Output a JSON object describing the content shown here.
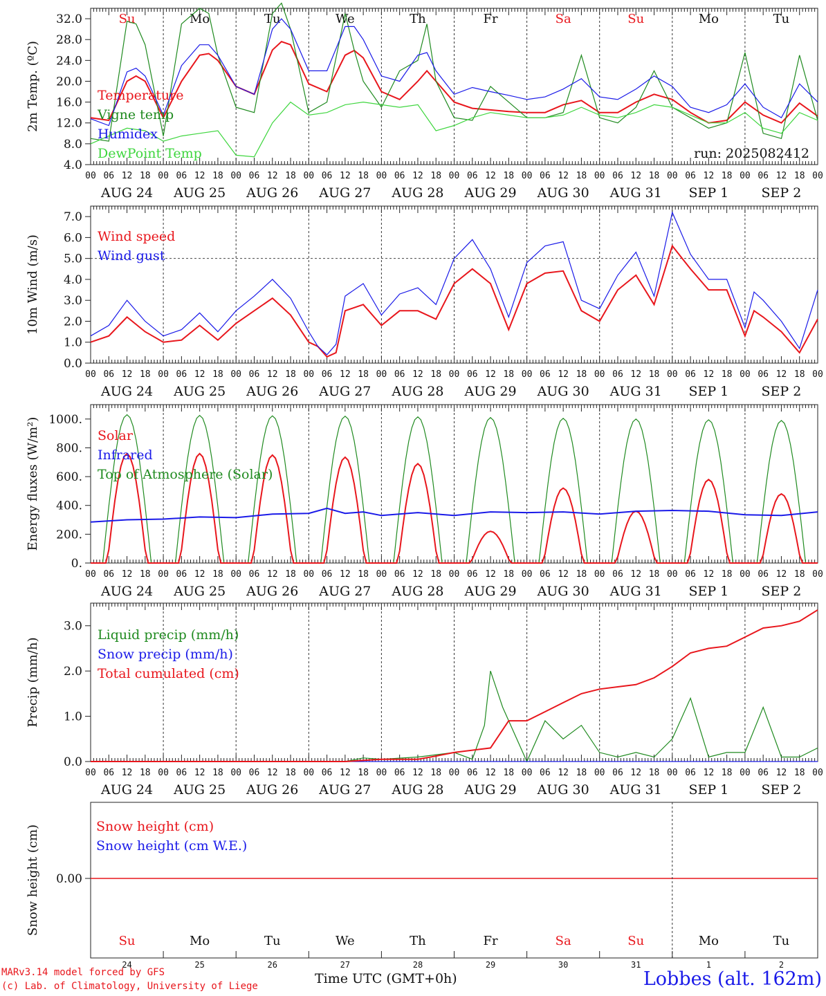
{
  "days": [
    "AUG 24",
    "AUG 25",
    "AUG 26",
    "AUG 27",
    "AUG 28",
    "AUG 29",
    "AUG 30",
    "AUG 31",
    "SEP  1",
    "SEP  2"
  ],
  "weekdays": [
    "Su",
    "Mo",
    "Tu",
    "We",
    "Th",
    "Fr",
    "Sa",
    "Su",
    "Mo",
    "Tu"
  ],
  "weekday_colors": [
    "#e8161c",
    "#111111",
    "#111111",
    "#111111",
    "#111111",
    "#111111",
    "#e8161c",
    "#e8161c",
    "#111111",
    "#111111"
  ],
  "hour_ticks": [
    "00",
    "06",
    "12",
    "18"
  ],
  "bottom_day_numbers": [
    "24",
    "25",
    "26",
    "27",
    "28",
    "29",
    "30",
    "31",
    "1",
    "2"
  ],
  "footer": {
    "credit_line1": "MARv3.14 model forced by GFS",
    "credit_line2": "(c) Lab. of Climatology, University of Liege",
    "time_label": "Time UTC (GMT+0h)",
    "station": "Lobbes (alt. 162m)"
  },
  "colors": {
    "red": "#e8161c",
    "green": "#1f8a1f",
    "blue": "#1a1ae8",
    "lightgreen": "#3ed63e",
    "axis": "#222222"
  },
  "chart_data": [
    {
      "type": "line",
      "ylabel": "2m Temp. (ºC)",
      "ylim": [
        4,
        34
      ],
      "yticks": [
        "4.0",
        "8.0",
        "12.0",
        "16.0",
        "20.0",
        "24.0",
        "28.0",
        "32.0"
      ],
      "annotation": "run: 2025082412",
      "x_unit": "hours since AUG 24 00 UTC",
      "series": [
        {
          "name": "Temperature",
          "color": "red",
          "x": [
            0,
            6,
            12,
            15,
            18,
            24,
            30,
            36,
            39,
            42,
            48,
            54,
            60,
            63,
            66,
            72,
            78,
            84,
            87,
            90,
            96,
            102,
            108,
            111,
            114,
            120,
            126,
            132,
            138,
            144,
            150,
            156,
            162,
            168,
            174,
            180,
            186,
            192,
            198,
            204,
            210,
            216,
            222,
            228,
            234,
            240
          ],
          "y": [
            13,
            12.5,
            20,
            21,
            20,
            13,
            20,
            25,
            25.3,
            24,
            19,
            17.5,
            26,
            27.6,
            27,
            19.5,
            18,
            25,
            25.9,
            24.5,
            18,
            16.5,
            20,
            22,
            20,
            16,
            14.8,
            14.5,
            14.2,
            14,
            14,
            15.5,
            16.3,
            14,
            14,
            16,
            17.5,
            16.5,
            14,
            12,
            12.5,
            16,
            13.5,
            12,
            15.8,
            13.3
          ]
        },
        {
          "name": "Vigne temp",
          "color": "green",
          "x": [
            0,
            6,
            12,
            15,
            18,
            24,
            30,
            36,
            39,
            42,
            48,
            54,
            60,
            63,
            66,
            72,
            78,
            84,
            87,
            90,
            96,
            102,
            108,
            111,
            114,
            120,
            126,
            132,
            138,
            144,
            150,
            156,
            162,
            168,
            174,
            180,
            186,
            192,
            198,
            204,
            210,
            216,
            222,
            228,
            234,
            240
          ],
          "y": [
            9,
            8.5,
            31.5,
            31,
            27,
            9.5,
            31,
            34,
            33,
            25,
            15,
            14,
            33,
            35,
            30,
            14,
            16,
            33,
            26,
            20,
            15,
            22,
            24,
            31,
            20,
            13,
            12.5,
            19,
            16,
            13,
            13,
            14,
            25,
            13,
            12,
            15,
            22,
            15,
            13,
            11,
            12,
            25.5,
            10,
            9,
            25,
            12.5
          ]
        },
        {
          "name": "Humidex",
          "color": "blue",
          "x": [
            0,
            6,
            12,
            15,
            18,
            24,
            30,
            36,
            39,
            42,
            48,
            54,
            60,
            63,
            66,
            72,
            78,
            84,
            87,
            90,
            96,
            102,
            108,
            111,
            114,
            120,
            126,
            132,
            138,
            144,
            150,
            156,
            162,
            168,
            174,
            180,
            186,
            192,
            198,
            204,
            210,
            216,
            222,
            228,
            234,
            240
          ],
          "y": [
            12.8,
            11.5,
            21.8,
            22.5,
            21,
            13.5,
            23,
            27,
            27,
            25,
            19,
            17.5,
            30,
            32,
            30,
            22,
            22,
            30.5,
            30.5,
            28,
            21,
            20,
            25,
            25.5,
            22,
            17.5,
            18.8,
            18,
            17.3,
            16.5,
            17,
            18.5,
            20.5,
            17,
            16.5,
            18.5,
            21,
            19,
            15,
            14,
            15.5,
            19.5,
            15,
            13,
            19.5,
            16
          ]
        },
        {
          "name": "DewPoint Temp",
          "color": "lightgreen",
          "x": [
            0,
            6,
            12,
            18,
            24,
            30,
            36,
            42,
            48,
            54,
            60,
            66,
            72,
            78,
            84,
            90,
            96,
            102,
            108,
            114,
            120,
            126,
            132,
            138,
            144,
            150,
            156,
            162,
            168,
            174,
            180,
            186,
            192,
            198,
            204,
            210,
            216,
            222,
            228,
            234,
            240
          ],
          "y": [
            8,
            9.5,
            11,
            10.5,
            8.5,
            9.5,
            10,
            10.5,
            5.8,
            5.5,
            12,
            16,
            13.5,
            14,
            15.5,
            16,
            15.5,
            15,
            15.5,
            10.5,
            11.5,
            13,
            14,
            13.5,
            13,
            13,
            13.5,
            15,
            13.5,
            13,
            14,
            15.5,
            15,
            13.5,
            12,
            12,
            14,
            11,
            10,
            14,
            12.5
          ]
        }
      ]
    },
    {
      "type": "line",
      "ylabel": "10m Wind (m/s)",
      "ylim": [
        0,
        7.5
      ],
      "yticks": [
        "0.0",
        "1.0",
        "2.0",
        "3.0",
        "4.0",
        "5.0",
        "6.0",
        "7.0"
      ],
      "reference_line": 5.0,
      "series": [
        {
          "name": "Wind speed",
          "color": "red",
          "x": [
            0,
            6,
            12,
            18,
            24,
            30,
            36,
            42,
            48,
            54,
            60,
            66,
            72,
            75,
            78,
            81,
            84,
            90,
            96,
            102,
            108,
            114,
            120,
            126,
            132,
            138,
            144,
            150,
            156,
            162,
            168,
            174,
            180,
            186,
            192,
            198,
            204,
            210,
            216,
            219,
            222,
            228,
            234,
            240
          ],
          "y": [
            1,
            1.3,
            2.2,
            1.5,
            1,
            1.1,
            1.8,
            1.1,
            1.9,
            2.5,
            3.1,
            2.3,
            1,
            0.8,
            0.3,
            0.5,
            2.5,
            2.8,
            1.8,
            2.5,
            2.5,
            2.1,
            3.8,
            4.5,
            3.8,
            1.6,
            3.8,
            4.3,
            4.4,
            2.5,
            2,
            3.5,
            4.2,
            2.8,
            5.6,
            4.5,
            3.5,
            3.5,
            1.3,
            2.5,
            2.2,
            1.5,
            0.5,
            2.1
          ]
        },
        {
          "name": "Wind gust",
          "color": "blue",
          "x": [
            0,
            6,
            12,
            18,
            24,
            30,
            36,
            42,
            48,
            54,
            60,
            66,
            72,
            75,
            78,
            81,
            84,
            90,
            96,
            102,
            108,
            114,
            120,
            126,
            132,
            138,
            144,
            150,
            156,
            162,
            168,
            174,
            180,
            186,
            192,
            198,
            204,
            210,
            216,
            219,
            222,
            228,
            234,
            240
          ],
          "y": [
            1.3,
            1.8,
            3,
            2,
            1.3,
            1.6,
            2.4,
            1.5,
            2.5,
            3.2,
            4,
            3.1,
            1.5,
            0.8,
            0.4,
            0.9,
            3.2,
            3.8,
            2.3,
            3.3,
            3.6,
            2.8,
            5,
            5.9,
            4.5,
            2.2,
            4.8,
            5.6,
            5.8,
            3,
            2.6,
            4.2,
            5.3,
            3.2,
            7.2,
            5.2,
            4,
            4,
            1.7,
            3.4,
            3,
            2,
            0.7,
            3.5
          ]
        }
      ]
    },
    {
      "type": "line",
      "ylabel": "Energy fluxes (W/m²)",
      "ylim": [
        0,
        1100
      ],
      "yticks": [
        "0.",
        "200.",
        "400.",
        "600.",
        "800.",
        "1000."
      ],
      "series": [
        {
          "name": "Solar",
          "color": "red",
          "days": [
            760,
            760,
            750,
            735,
            690,
            220,
            520,
            360,
            580,
            480
          ]
        },
        {
          "name": "Infrared",
          "color": "blue",
          "x": [
            0,
            12,
            24,
            36,
            48,
            60,
            72,
            78,
            84,
            90,
            96,
            108,
            120,
            132,
            144,
            156,
            168,
            180,
            192,
            204,
            216,
            228,
            240
          ],
          "y": [
            285,
            300,
            305,
            320,
            315,
            340,
            345,
            380,
            345,
            355,
            330,
            350,
            330,
            355,
            350,
            355,
            340,
            360,
            365,
            360,
            335,
            330,
            355
          ]
        },
        {
          "name": "Top of Atmosphere (Solar)",
          "color": "green",
          "days": [
            1030,
            1025,
            1022,
            1020,
            1015,
            1010,
            1005,
            1000,
            995,
            990
          ]
        }
      ]
    },
    {
      "type": "line",
      "ylabel": "Precip (mm/h)",
      "ylim": [
        0,
        3.5
      ],
      "yticks": [
        "0.0",
        "1.0",
        "2.0",
        "3.0"
      ],
      "series": [
        {
          "name": "Liquid precip (mm/h)",
          "color": "green",
          "x": [
            0,
            84,
            90,
            96,
            108,
            120,
            126,
            130,
            132,
            136,
            144,
            150,
            156,
            162,
            168,
            174,
            180,
            186,
            192,
            198,
            204,
            210,
            216,
            222,
            228,
            234,
            240
          ],
          "y": [
            0,
            0,
            0.08,
            0.05,
            0.1,
            0.2,
            0.05,
            0.8,
            2,
            1.2,
            0,
            0.9,
            0.5,
            0.8,
            0.2,
            0.1,
            0.2,
            0.1,
            0.5,
            1.4,
            0.1,
            0.2,
            0.2,
            1.2,
            0.1,
            0.1,
            0.3
          ]
        },
        {
          "name": "Snow precip (mm/h)",
          "color": "blue",
          "x": [
            0,
            240
          ],
          "y": [
            0,
            0
          ]
        },
        {
          "name": "Total cumulated (cm)",
          "color": "red",
          "x": [
            0,
            84,
            96,
            108,
            114,
            120,
            126,
            132,
            138,
            144,
            150,
            156,
            162,
            168,
            174,
            180,
            186,
            192,
            198,
            204,
            210,
            216,
            222,
            228,
            234,
            240
          ],
          "y": [
            0,
            0,
            0.05,
            0.05,
            0.12,
            0.2,
            0.25,
            0.3,
            0.9,
            0.9,
            1.1,
            1.3,
            1.5,
            1.6,
            1.65,
            1.7,
            1.85,
            2.1,
            2.4,
            2.5,
            2.55,
            2.75,
            2.95,
            3.0,
            3.1,
            3.35
          ]
        }
      ]
    },
    {
      "type": "line",
      "ylabel": "Snow height (cm)",
      "yticks": [
        "0.00"
      ],
      "series": [
        {
          "name": "Snow height (cm)",
          "color": "red",
          "x": [
            0,
            240
          ],
          "y": [
            0,
            0
          ]
        },
        {
          "name": "Snow height (cm W.E.)",
          "color": "blue",
          "x": [],
          "y": []
        }
      ]
    }
  ]
}
